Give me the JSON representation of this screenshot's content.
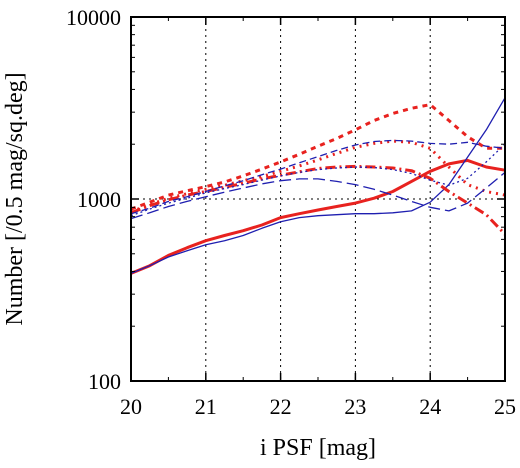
{
  "chart_data": {
    "type": "line",
    "title": "",
    "xlabel": "i PSF [mag]",
    "ylabel": "Number [/0.5 mag/sq.deg]",
    "xlim": [
      20,
      25
    ],
    "ylim": [
      100,
      10000
    ],
    "yscale": "log",
    "x_ticks": [
      20,
      21,
      22,
      23,
      24,
      25
    ],
    "x_tick_labels": [
      "20",
      "21",
      "22",
      "23",
      "24",
      "25"
    ],
    "y_ticks": [
      100,
      1000,
      10000
    ],
    "y_tick_labels": [
      "100",
      "1000",
      "10000"
    ],
    "grid": {
      "x": [
        21,
        22,
        23,
        24
      ],
      "y": [
        1000
      ],
      "style": "dotted"
    },
    "legend": "none",
    "series": [
      {
        "color": "#e8221f",
        "width": 3,
        "dash": "",
        "x": [
          20,
          20.25,
          20.5,
          20.75,
          21,
          21.25,
          21.5,
          21.75,
          22,
          22.25,
          22.5,
          22.75,
          23,
          23.25,
          23.5,
          23.75,
          24,
          24.25,
          24.5,
          24.75,
          25
        ],
        "y": [
          390,
          430,
          490,
          540,
          590,
          630,
          670,
          720,
          790,
          830,
          870,
          910,
          950,
          1010,
          1100,
          1250,
          1420,
          1560,
          1630,
          1500,
          1440
        ]
      },
      {
        "color": "#1f1fb0",
        "width": 1.3,
        "dash": "",
        "x": [
          20,
          20.25,
          20.5,
          20.75,
          21,
          21.25,
          21.5,
          21.75,
          22,
          22.25,
          22.5,
          22.75,
          23,
          23.25,
          23.5,
          23.75,
          24,
          24.25,
          24.5,
          24.75,
          25
        ],
        "y": [
          390,
          430,
          480,
          520,
          560,
          590,
          630,
          690,
          750,
          790,
          810,
          820,
          830,
          830,
          840,
          860,
          960,
          1200,
          1700,
          2400,
          3600
        ]
      },
      {
        "color": "#e8221f",
        "width": 3,
        "dash": "5,5",
        "x": [
          20,
          20.25,
          20.5,
          20.75,
          21,
          21.25,
          21.5,
          21.75,
          22,
          22.25,
          22.5,
          22.75,
          23,
          23.25,
          23.5,
          23.75,
          24,
          24.25,
          24.5,
          24.75,
          25
        ],
        "y": [
          880,
          960,
          1050,
          1110,
          1170,
          1240,
          1340,
          1460,
          1600,
          1760,
          1950,
          2150,
          2400,
          2700,
          2950,
          3150,
          3300,
          2700,
          2200,
          1900,
          1900
        ]
      },
      {
        "color": "#e8221f",
        "width": 3,
        "dash": "2,5",
        "x": [
          20,
          20.25,
          20.5,
          20.75,
          21,
          21.25,
          21.5,
          21.75,
          22,
          22.25,
          22.5,
          22.75,
          23,
          23.25,
          23.5,
          23.75,
          24,
          24.25,
          24.5,
          24.75,
          25
        ],
        "y": [
          850,
          930,
          1010,
          1070,
          1130,
          1190,
          1260,
          1330,
          1420,
          1520,
          1640,
          1780,
          1920,
          2020,
          2080,
          2050,
          1900,
          1500,
          1200,
          1100,
          1050
        ]
      },
      {
        "color": "#e8221f",
        "width": 3,
        "dash": "10,4,2,4",
        "x": [
          20,
          20.25,
          20.5,
          20.75,
          21,
          21.25,
          21.5,
          21.75,
          22,
          22.25,
          22.5,
          22.75,
          23,
          23.25,
          23.5,
          23.75,
          24,
          24.25,
          24.5,
          24.75,
          25
        ],
        "y": [
          840,
          920,
          990,
          1050,
          1100,
          1160,
          1220,
          1290,
          1350,
          1410,
          1470,
          1500,
          1510,
          1500,
          1480,
          1430,
          1300,
          1100,
          950,
          820,
          640
        ]
      },
      {
        "color": "#1f1fb0",
        "width": 1.3,
        "dash": "7,4",
        "x": [
          20,
          20.25,
          20.5,
          20.75,
          21,
          21.25,
          21.5,
          21.75,
          22,
          22.25,
          22.5,
          22.75,
          23,
          23.25,
          23.5,
          23.75,
          24,
          24.25,
          24.5,
          24.75,
          25
        ],
        "y": [
          830,
          890,
          970,
          1030,
          1100,
          1180,
          1260,
          1360,
          1460,
          1580,
          1710,
          1850,
          1980,
          2070,
          2100,
          2080,
          2020,
          2000,
          2050,
          1950,
          1900
        ]
      },
      {
        "color": "#1f1fb0",
        "width": 1.3,
        "dash": "2,3",
        "x": [
          20,
          20.25,
          20.5,
          20.75,
          21,
          21.25,
          21.5,
          21.75,
          22,
          22.25,
          22.5,
          22.75,
          23,
          23.25,
          23.5,
          23.75,
          24,
          24.25,
          24.5,
          24.75,
          25
        ],
        "y": [
          810,
          880,
          950,
          1010,
          1080,
          1140,
          1200,
          1270,
          1340,
          1400,
          1450,
          1480,
          1500,
          1490,
          1450,
          1380,
          1270,
          1190,
          1300,
          1600,
          2000
        ]
      },
      {
        "color": "#1f1fb0",
        "width": 1.3,
        "dash": "12,5",
        "x": [
          20,
          20.25,
          20.5,
          20.75,
          21,
          21.25,
          21.5,
          21.75,
          22,
          22.25,
          22.5,
          22.75,
          23,
          23.25,
          23.5,
          23.75,
          24,
          24.25,
          24.5,
          24.75,
          25
        ],
        "y": [
          780,
          840,
          910,
          970,
          1030,
          1090,
          1150,
          1210,
          1260,
          1290,
          1290,
          1250,
          1200,
          1130,
          1050,
          970,
          900,
          860,
          950,
          1150,
          1400
        ]
      }
    ]
  }
}
